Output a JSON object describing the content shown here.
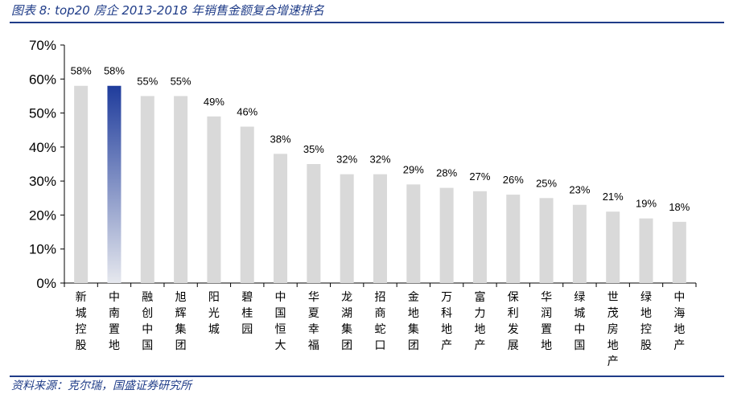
{
  "figure": {
    "title": "图表 8:  top20 房企 2013-2018 年销售金额复合增速排名",
    "source": "资料来源：克尔瑞，国盛证券研究所"
  },
  "chart_data": {
    "type": "bar",
    "title": "top20 房企 2013-2018 年销售金额复合增速排名",
    "xlabel": "",
    "ylabel": "",
    "ylim": [
      0,
      70
    ],
    "yticks": [
      "0%",
      "10%",
      "20%",
      "30%",
      "40%",
      "50%",
      "60%",
      "70%"
    ],
    "categories": [
      "新城控股",
      "中南置地",
      "融创中国",
      "旭辉集团",
      "阳光城",
      "碧桂园",
      "中国恒大",
      "华夏幸福",
      "龙湖集团",
      "招商蛇口",
      "金地集团",
      "万科地产",
      "富力地产",
      "保利发展",
      "华润置地",
      "绿城中国",
      "世茂房地产",
      "绿地控股",
      "中海地产"
    ],
    "values": [
      58,
      58,
      55,
      55,
      49,
      46,
      38,
      35,
      32,
      32,
      29,
      28,
      27,
      26,
      25,
      23,
      21,
      19,
      18
    ],
    "labels": [
      "58%",
      "58%",
      "55%",
      "55%",
      "49%",
      "46%",
      "38%",
      "35%",
      "32%",
      "32%",
      "29%",
      "28%",
      "27%",
      "26%",
      "25%",
      "23%",
      "21%",
      "19%",
      "18%"
    ],
    "highlight_index": 1,
    "colors": {
      "bar": "#d9d9d9",
      "highlight_top": "#1f3c9c",
      "highlight_bottom": "#e6e8ee",
      "axis": "#000000"
    },
    "grid": false,
    "legend": "none"
  }
}
